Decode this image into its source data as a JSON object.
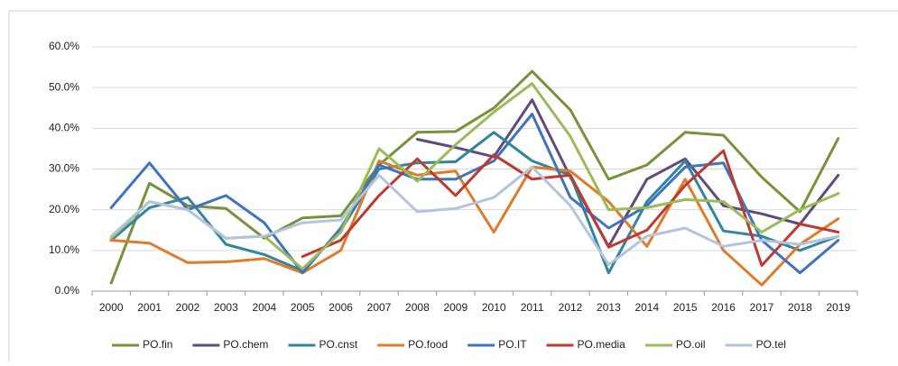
{
  "chart_data": {
    "type": "line",
    "categories": [
      "2000",
      "2001",
      "2002",
      "2003",
      "2004",
      "2005",
      "2006",
      "2007",
      "2008",
      "2009",
      "2010",
      "2011",
      "2012",
      "2013",
      "2014",
      "2015",
      "2016",
      "2017",
      "2018",
      "2019"
    ],
    "ylim": [
      0,
      60
    ],
    "yticks": [
      {
        "value": 0,
        "label": "0.0%"
      },
      {
        "value": 10,
        "label": "10.0%"
      },
      {
        "value": 20,
        "label": "20.0%"
      },
      {
        "value": 30,
        "label": "30.0%"
      },
      {
        "value": 40,
        "label": "40.0%"
      },
      {
        "value": 50,
        "label": "50.0%"
      },
      {
        "value": 60,
        "label": "60.0%"
      }
    ],
    "grid": true,
    "legend": "bottom",
    "series": [
      {
        "name": "PO.fin",
        "color": "#76923c",
        "values": [
          2,
          26.5,
          21,
          20.3,
          13,
          18,
          18.5,
          31,
          39,
          39.2,
          45,
          54,
          44.5,
          27.5,
          31,
          39,
          38.3,
          28,
          19.5,
          37.5
        ]
      },
      {
        "name": "PO.chem",
        "color": "#604a7b",
        "values": [
          null,
          null,
          null,
          null,
          null,
          null,
          null,
          null,
          37.3,
          35.3,
          33,
          47,
          28,
          11,
          27.5,
          32.5,
          21,
          19,
          16.5,
          28.5
        ]
      },
      {
        "name": "PO.cnst",
        "color": "#31859c",
        "values": [
          12.5,
          20.5,
          23,
          11.5,
          9,
          5,
          15,
          30,
          31.5,
          31.8,
          39,
          32,
          28.5,
          4.5,
          22,
          32,
          14.8,
          13.5,
          10,
          13.5
        ]
      },
      {
        "name": "PO.food",
        "color": "#e07b2a",
        "values": [
          12.5,
          11.8,
          7,
          7.2,
          8,
          4.5,
          10,
          32,
          28.5,
          29.5,
          14.5,
          30.5,
          29.5,
          22,
          11,
          27.5,
          10,
          1.5,
          11.5,
          17.8
        ]
      },
      {
        "name": "PO.IT",
        "color": "#3f72c0",
        "values": [
          20.5,
          31.5,
          20,
          23.5,
          16.8,
          4.5,
          15.5,
          31,
          27.5,
          27.5,
          32,
          43.5,
          23,
          15.5,
          21,
          30.5,
          31.5,
          12.5,
          4.5,
          12.5
        ]
      },
      {
        "name": "PO.media",
        "color": "#c0392f",
        "values": [
          null,
          null,
          null,
          null,
          null,
          8.5,
          12.5,
          23.5,
          32.5,
          23.5,
          33.5,
          27.5,
          28.5,
          10.8,
          15,
          26,
          34.5,
          6.3,
          16.5,
          14.5
        ]
      },
      {
        "name": "PO.oil",
        "color": "#9bbb59",
        "values": [
          13,
          22,
          20,
          13,
          13.5,
          5.5,
          14.5,
          35,
          27,
          36,
          44,
          51,
          38,
          20,
          20.5,
          22.5,
          22,
          14.5,
          20,
          24
        ]
      },
      {
        "name": "PO.tel",
        "color": "#b4c4de",
        "values": [
          13.5,
          22,
          20,
          13,
          13.5,
          16.8,
          17.5,
          28.5,
          19.5,
          20.3,
          23,
          30.5,
          21,
          6.5,
          13.5,
          15.5,
          11,
          12.5,
          11.5,
          13.5
        ]
      }
    ]
  }
}
